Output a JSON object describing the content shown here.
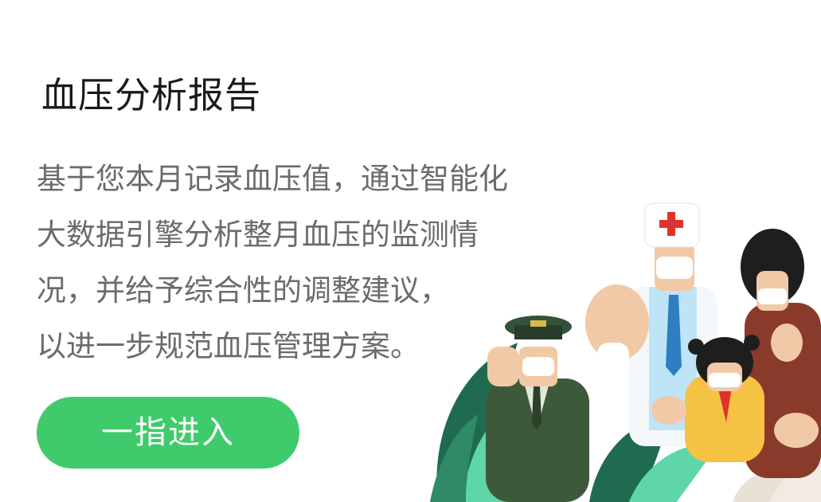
{
  "card": {
    "title": "血压分析报告",
    "description_lines": [
      "基于您本月记录血压值，通过智能化",
      "大数据引擎分析整月血压的监测情",
      "况，并给予综合性的调整建议，",
      "以进一步规范血压管理方案。"
    ],
    "enter_button_label": "一指进入"
  },
  "illustration": {
    "icon": "medical-team-illustration",
    "colors": {
      "accent_green": "#3fcb6c",
      "leaf_dark": "#1f6b4f",
      "leaf_mint": "#5fd6a8",
      "coat_green": "#3c5a3a",
      "shirt_blue": "#bfe3f7",
      "brown": "#8a3a2a",
      "yellow": "#f5c244",
      "red_cross": "#e03131"
    }
  }
}
